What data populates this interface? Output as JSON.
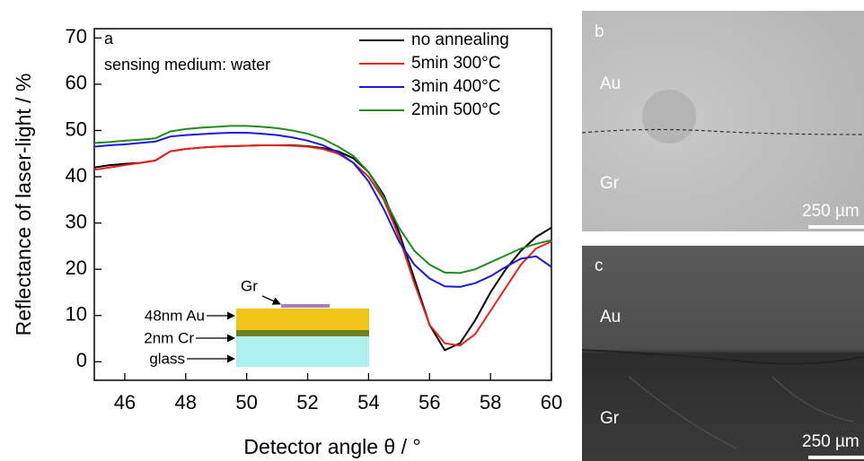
{
  "chart_data": {
    "type": "line",
    "xlabel": "Detector angle θ / °",
    "ylabel": "Reflectance of laser-light / %",
    "annotations": [
      "a",
      "sensing medium: water"
    ],
    "inset": {
      "layers": [
        "Gr",
        "48nm Au",
        "2nm Cr",
        "glass"
      ]
    },
    "xlim": [
      45,
      60
    ],
    "ylim": [
      -4,
      72
    ],
    "xticks": [
      46,
      48,
      50,
      52,
      54,
      56,
      58,
      60
    ],
    "yticks": [
      0,
      10,
      20,
      30,
      40,
      50,
      60,
      70
    ],
    "legend": "top-right",
    "x": [
      45,
      45.5,
      46,
      46.5,
      47,
      47.5,
      48,
      48.5,
      49,
      49.5,
      50,
      50.5,
      51,
      51.5,
      52,
      52.5,
      53,
      53.5,
      54,
      54.5,
      55,
      55.5,
      56,
      56.5,
      57,
      57.5,
      58,
      58.5,
      59,
      59.5,
      60
    ],
    "series": [
      {
        "name": "no annealing",
        "color": "#000000",
        "values": [
          42,
          42.5,
          42.8,
          43,
          43.5,
          45.5,
          46,
          46.3,
          46.5,
          46.6,
          46.7,
          46.8,
          46.8,
          46.8,
          46.6,
          46.2,
          45.5,
          44,
          41,
          36,
          28,
          18,
          8,
          2.5,
          4,
          9,
          15,
          20,
          24,
          27,
          29
        ]
      },
      {
        "name": "5min 300°C",
        "color": "#e8211c",
        "values": [
          41.5,
          42,
          42.5,
          43,
          43.5,
          45.5,
          46,
          46.3,
          46.5,
          46.6,
          46.7,
          46.8,
          46.8,
          46.7,
          46.5,
          46,
          45,
          43,
          40,
          35,
          27,
          17,
          8,
          4,
          3.5,
          6,
          11,
          16,
          21,
          24.5,
          26
        ]
      },
      {
        "name": "3min 400°C",
        "color": "#1b1bdc",
        "values": [
          46.5,
          46.8,
          47,
          47.3,
          47.6,
          48.7,
          49,
          49.2,
          49.4,
          49.5,
          49.5,
          49.3,
          49,
          48.5,
          47.8,
          46.8,
          45.3,
          43,
          39,
          33,
          26,
          21,
          18,
          16.3,
          16.2,
          17,
          18.5,
          20.5,
          22.3,
          22.8,
          20.5
        ]
      },
      {
        "name": "2min 500°C",
        "color": "#1e8c1e",
        "values": [
          47.3,
          47.5,
          47.8,
          48,
          48.3,
          49.8,
          50.3,
          50.6,
          50.8,
          51,
          51,
          50.8,
          50.5,
          50,
          49.3,
          48.2,
          46.5,
          44.5,
          41,
          35.5,
          29,
          24,
          21,
          19.3,
          19.2,
          20,
          21.5,
          23,
          24.5,
          25.5,
          26.3
        ]
      }
    ]
  },
  "panels": [
    {
      "label": "b",
      "regions": [
        "Au",
        "Gr"
      ],
      "scale_bar": "250 µm"
    },
    {
      "label": "c",
      "regions": [
        "Au",
        "Gr"
      ],
      "scale_bar": "250 µm"
    }
  ]
}
